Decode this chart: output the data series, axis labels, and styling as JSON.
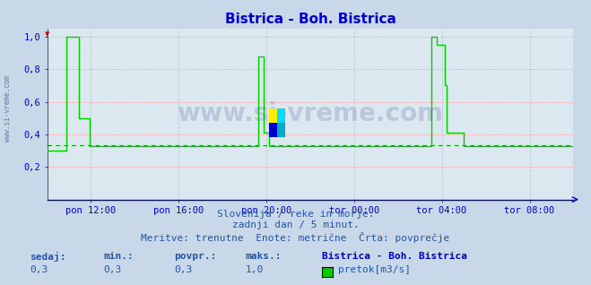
{
  "title": "Bistrica - Boh. Bistrica",
  "title_color": "#0000cc",
  "bg_color": "#c8d8e8",
  "plot_bg_color": "#dce8f0",
  "grid_color": "#ffaaaa",
  "line_color": "#00cc00",
  "avg_line_color": "#009900",
  "axis_color": "#0000cc",
  "tick_color": "#cc0000",
  "label_color": "#336699",
  "watermark": "www.si-vreme.com",
  "watermark_color": "#223388",
  "watermark_alpha": 0.18,
  "subtitle1": "Slovenija / reke in morje.",
  "subtitle2": "zadnji dan / 5 minut.",
  "subtitle3": "Meritve: trenutne  Enote: metrične  Črta: povprečje",
  "subtitle_color": "#2255aa",
  "legend_station": "Bistrica - Boh. Bistrica",
  "legend_label": "pretok[m3/s]",
  "legend_color": "#00cc00",
  "label_sedaj": "sedaj:",
  "label_min": "min.:",
  "label_povpr": "povpr.:",
  "label_maks": "maks.:",
  "val_sedaj": "0,3",
  "val_min": "0,3",
  "val_povpr": "0,3",
  "val_maks": "1,0",
  "ylim": [
    0.0,
    1.05
  ],
  "yticks": [
    0.2,
    0.4,
    0.6,
    0.8,
    1.0
  ],
  "ytick_labels": [
    "0,2",
    "0,4",
    "0,6",
    "0,8",
    "1,0"
  ],
  "avg_value": 0.335,
  "xtick_labels": [
    "pon 12:00",
    "pon 16:00",
    "pon 20:00",
    "tor 00:00",
    "tor 04:00",
    "tor 08:00"
  ],
  "xtick_positions": [
    0.083,
    0.25,
    0.417,
    0.583,
    0.75,
    0.917
  ],
  "x_data": [
    0.0,
    0.035,
    0.036,
    0.06,
    0.061,
    0.08,
    0.081,
    0.1,
    0.15,
    0.2,
    0.25,
    0.3,
    0.35,
    0.4,
    0.401,
    0.402,
    0.41,
    0.411,
    0.42,
    0.421,
    0.435,
    0.436,
    0.455,
    0.456,
    0.46,
    0.5,
    0.55,
    0.6,
    0.65,
    0.7,
    0.73,
    0.731,
    0.732,
    0.74,
    0.741,
    0.755,
    0.756,
    0.76,
    0.761,
    0.79,
    0.791,
    0.83,
    0.88,
    0.92,
    0.93,
    0.96,
    0.99,
    1.0
  ],
  "y_data": [
    0.3,
    0.3,
    1.0,
    1.0,
    0.5,
    0.5,
    0.33,
    0.33,
    0.33,
    0.33,
    0.33,
    0.33,
    0.33,
    0.33,
    0.79,
    0.88,
    0.88,
    0.41,
    0.41,
    0.33,
    0.33,
    0.33,
    0.33,
    0.33,
    0.33,
    0.33,
    0.33,
    0.33,
    0.33,
    0.33,
    0.33,
    1.0,
    1.0,
    0.95,
    0.95,
    0.7,
    0.7,
    0.41,
    0.41,
    0.41,
    0.33,
    0.33,
    0.33,
    0.33,
    0.33,
    0.33,
    0.33,
    0.33
  ]
}
